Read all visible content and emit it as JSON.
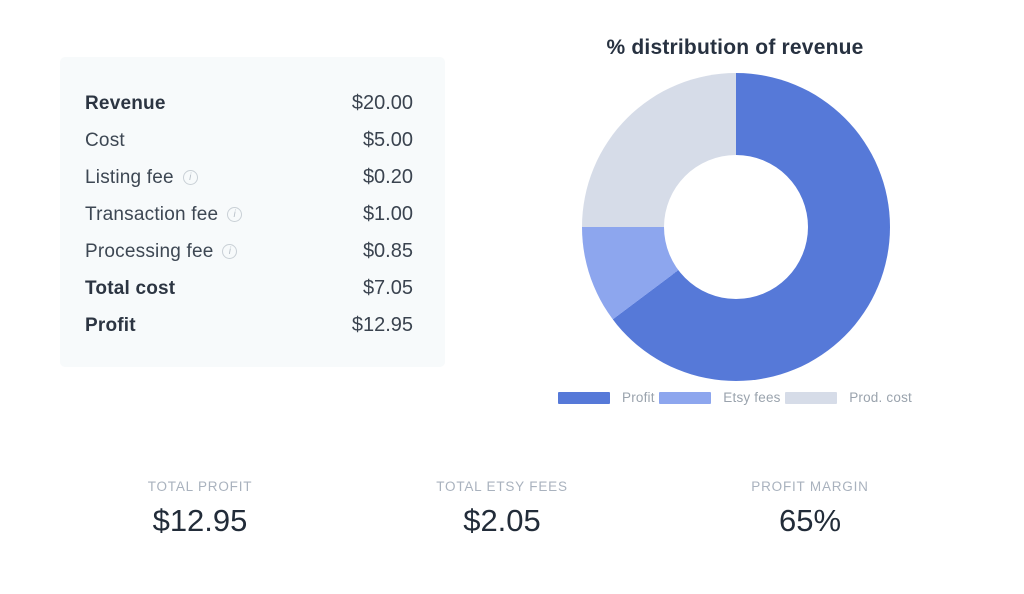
{
  "panel": {
    "rows": [
      {
        "label": "Revenue",
        "value": "$20.00"
      },
      {
        "label": "Cost",
        "value": "$5.00"
      },
      {
        "label": "Listing fee",
        "value": "$0.20"
      },
      {
        "label": "Transaction fee",
        "value": "$1.00"
      },
      {
        "label": "Processing fee",
        "value": "$0.85"
      },
      {
        "label": "Total cost",
        "value": "$7.05"
      },
      {
        "label": "Profit",
        "value": "$12.95"
      }
    ]
  },
  "icons": {
    "info": "i"
  },
  "chart_data": {
    "type": "pie",
    "subtype": "donut",
    "title": "% distribution of revenue",
    "segments": [
      {
        "label": "Profit",
        "percent": 64.75,
        "color": "#5679d8"
      },
      {
        "label": "Etsy fees",
        "percent": 10.25,
        "color": "#8da6ee"
      },
      {
        "label": "Prod. cost",
        "percent": 25.0,
        "color": "#d6dce8"
      }
    ],
    "start_angle_deg": 0,
    "direction": "clockwise",
    "inner_radius_ratio": 0.47,
    "legend_position": "bottom"
  },
  "stats": [
    {
      "label": "TOTAL PROFIT",
      "value": "$12.95"
    },
    {
      "label": "TOTAL ETSY FEES",
      "value": "$2.05"
    },
    {
      "label": "PROFIT MARGIN",
      "value": "65%"
    }
  ],
  "colors": {
    "page_bg": "#ffffff",
    "panel_bg": "#f7fafb",
    "title_text": "#273140",
    "label_text": "#3d4753",
    "value_text": "#3a434f",
    "stat_label_text": "#a9b2be",
    "stat_value_text": "#222c39",
    "legend_text": "#9aa3ad"
  }
}
